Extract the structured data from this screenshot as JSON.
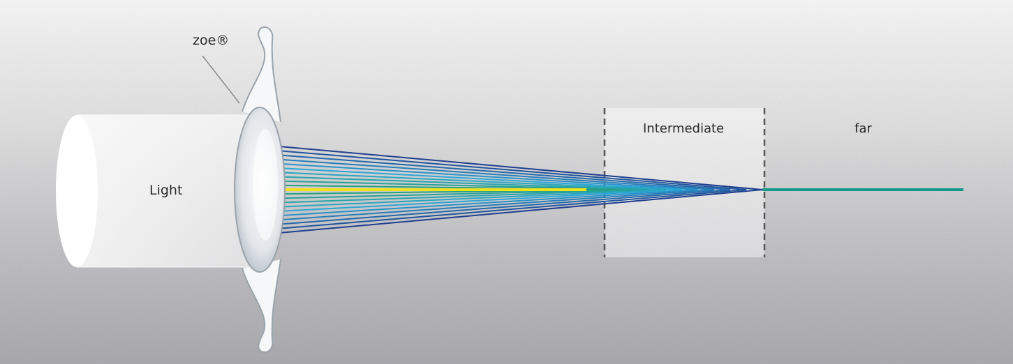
{
  "labels": {
    "lens": "zoe®",
    "light": "Light",
    "intermediate": "Intermediate",
    "far": "far"
  },
  "colors": {
    "ray_outer": "#1f3f8f",
    "ray_mid": "#2aa6d6",
    "ray_inner": "#23a06a",
    "ray_center": "#f2e21c",
    "far_beam": "#17998a",
    "zone_border": "#555555"
  }
}
